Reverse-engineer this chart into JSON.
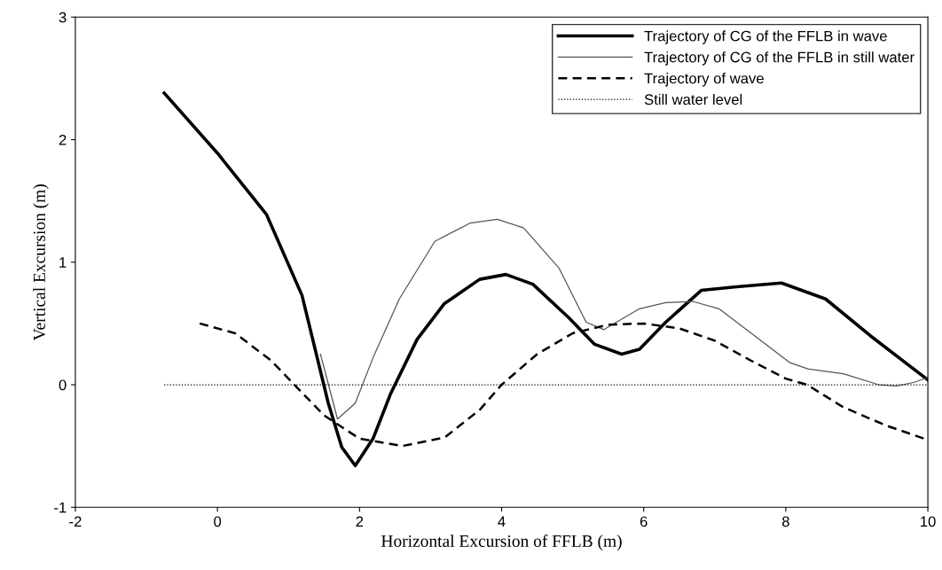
{
  "chart_data": {
    "type": "line",
    "xlabel": "Horizontal Excursion of FFLB (m)",
    "ylabel": "Vertical Excursion (m)",
    "xlim": [
      -2,
      10
    ],
    "xticks": [
      -2,
      0,
      2,
      4,
      6,
      8,
      10
    ],
    "ylim": [
      -1,
      3
    ],
    "yticks": [
      -1,
      0,
      1,
      2,
      3
    ],
    "grid": false,
    "legend": "top right",
    "marker": "none",
    "series": [
      {
        "name": "Trajectory of CG of the FFLB in wave",
        "color": "#000000",
        "line_style": "solid",
        "x": [
          -0.75,
          0,
          0.69,
          1.19,
          1.56,
          1.75,
          1.94,
          2.19,
          2.44,
          2.81,
          3.19,
          3.69,
          4.06,
          4.44,
          4.94,
          5.31,
          5.69,
          5.94,
          6.31,
          6.81,
          7.31,
          7.94,
          8.56,
          9.19,
          10
        ],
        "values": [
          2.38,
          1.89,
          1.39,
          0.73,
          -0.15,
          -0.51,
          -0.66,
          -0.44,
          -0.07,
          0.37,
          0.66,
          0.86,
          0.9,
          0.82,
          0.55,
          0.33,
          0.25,
          0.29,
          0.51,
          0.77,
          0.8,
          0.83,
          0.7,
          0.4,
          0.04
        ]
      },
      {
        "name": "Trajectory of CG of the FFLB in still water",
        "color": "#555555",
        "line_style": "solid",
        "x": [
          1.45,
          1.69,
          1.94,
          2.19,
          2.56,
          3.06,
          3.56,
          3.94,
          4.31,
          4.81,
          5.19,
          5.44,
          5.94,
          6.31,
          6.69,
          7.06,
          7.56,
          8.06,
          8.31,
          8.81,
          9.31,
          9.56,
          9.81,
          10
        ],
        "values": [
          0.25,
          -0.28,
          -0.15,
          0.22,
          0.7,
          1.17,
          1.32,
          1.35,
          1.28,
          0.95,
          0.51,
          0.45,
          0.62,
          0.67,
          0.68,
          0.62,
          0.4,
          0.18,
          0.13,
          0.09,
          0.0,
          -0.01,
          0.02,
          0.06
        ]
      },
      {
        "name": "Trajectory of wave",
        "color": "#000000",
        "line_style": "dashed",
        "x": [
          -0.25,
          0.25,
          0.75,
          1.0,
          1.5,
          2.0,
          2.6,
          3.2,
          3.7,
          4.0,
          4.5,
          5.0,
          5.5,
          6.0,
          6.5,
          7.0,
          7.5,
          8.0,
          8.3,
          8.8,
          9.4,
          10
        ],
        "values": [
          0.5,
          0.42,
          0.2,
          0.05,
          -0.25,
          -0.44,
          -0.5,
          -0.43,
          -0.2,
          0.0,
          0.25,
          0.42,
          0.49,
          0.5,
          0.46,
          0.36,
          0.2,
          0.05,
          0.0,
          -0.18,
          -0.33,
          -0.45
        ]
      },
      {
        "name": "Still water level",
        "color": "#000000",
        "line_style": "dotted",
        "x": [
          -0.75,
          10
        ],
        "values": [
          0,
          0
        ]
      }
    ]
  }
}
